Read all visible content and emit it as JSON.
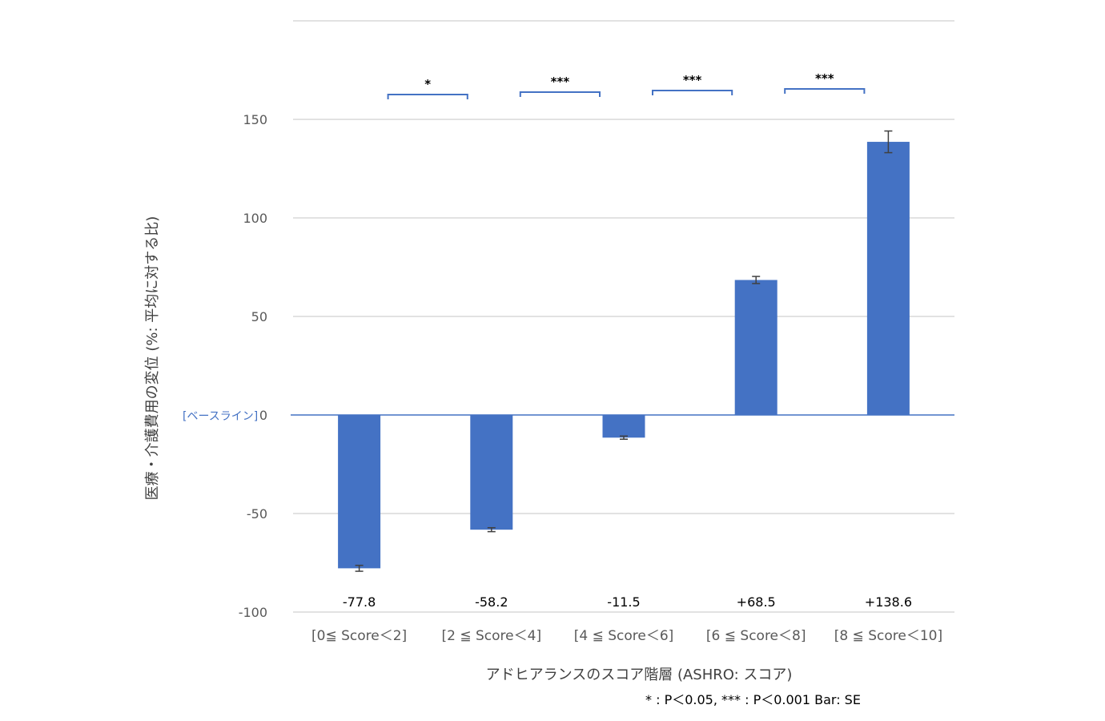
{
  "chart_data": {
    "type": "bar",
    "categories": [
      "[0≦ Score＜2]",
      "[2 ≦ Score＜4]",
      "[4 ≦ Score＜6]",
      "[6 ≦ Score＜8]",
      "[8 ≦ Score＜10]"
    ],
    "values": [
      -77.8,
      -58.2,
      -11.5,
      68.5,
      138.6
    ],
    "value_labels": [
      "-77.8",
      "-58.2",
      "-11.5",
      "+68.5",
      "+138.6"
    ],
    "error_bars_se": [
      1.5,
      1.0,
      0.8,
      1.8,
      5.5
    ],
    "significance": [
      {
        "between": [
          0,
          1
        ],
        "label": "*"
      },
      {
        "between": [
          1,
          2
        ],
        "label": "***"
      },
      {
        "between": [
          2,
          3
        ],
        "label": "***"
      },
      {
        "between": [
          3,
          4
        ],
        "label": "***"
      }
    ],
    "xlabel": "アドヒアランスのスコア階層 (ASHRO: スコア)",
    "ylabel": "医療・介護費用の変位 (%: 平均に対する比)",
    "baseline_label": "[ベースライン]",
    "yticks": [
      150,
      100,
      50,
      0,
      -50,
      -100
    ],
    "ylim": [
      -100,
      200
    ],
    "grid": true,
    "footnote": "* : P＜0.05, *** : P＜0.001  Bar: SE",
    "colors": {
      "bar": "#4472C4",
      "grid": "#D9D9D9",
      "bracket": "#4472C4",
      "error": "#404040"
    }
  }
}
